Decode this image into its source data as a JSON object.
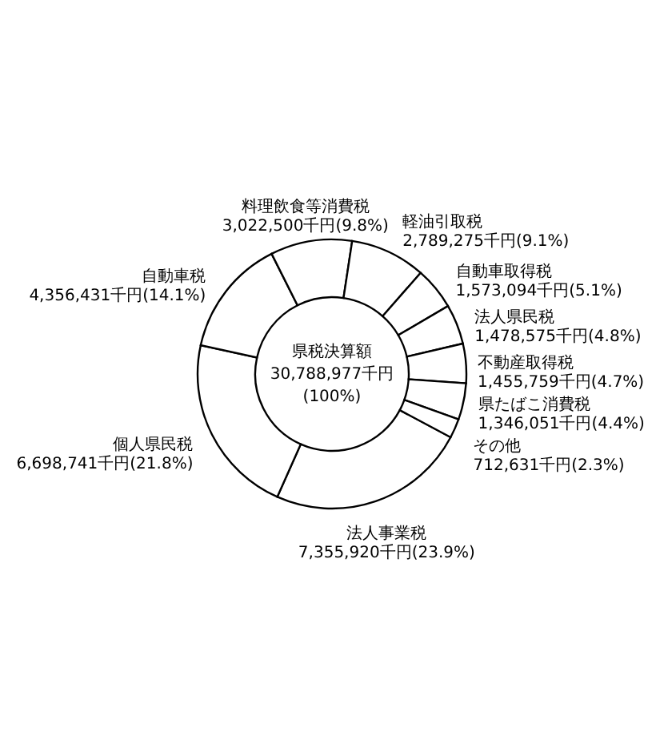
{
  "chart_data": {
    "type": "donut",
    "categories": [
      "法人事業税",
      "個人県民税",
      "自動車税",
      "料理飲食等消費税",
      "軽油引取税",
      "自動車取得税",
      "法人県民税",
      "不動産取得税",
      "県たばこ消費税",
      "その他"
    ],
    "values": [
      7355920,
      6698741,
      4356431,
      3022500,
      2789275,
      1573094,
      1478575,
      1455759,
      1346051,
      712631
    ],
    "value_labels": [
      "7,355,920千円(23.9%)",
      "6,698,741千円(21.8%)",
      "4,356,431千円(14.1%)",
      "3,022,500千円(9.8%)",
      "2,789,275千円(9.1%)",
      "1,573,094千円(5.1%)",
      "1,478,575千円(4.8%)",
      "1,455,759千円(4.7%)",
      "1,346,051千円(4.4%)",
      "712,631千円(2.3%)"
    ],
    "colors": [
      "#ffffff",
      "#ffffff",
      "#ffffff",
      "#ffffff",
      "#ffffff",
      "#ffffff",
      "#ffffff",
      "#ffffff",
      "#ffffff",
      "#ffffff"
    ],
    "annotations": [
      "県税決算額",
      "30,788,977千円",
      "(100%)"
    ]
  }
}
